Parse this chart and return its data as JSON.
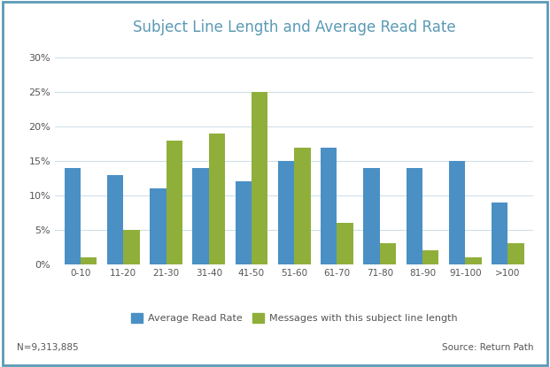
{
  "title": "Subject Line Length and Average Read Rate",
  "categories": [
    "0-10",
    "11-20",
    "21-30",
    "31-40",
    "41-50",
    "51-60",
    "61-70",
    "71-80",
    "81-90",
    "91-100",
    ">100"
  ],
  "avg_read_rate": [
    0.14,
    0.13,
    0.11,
    0.14,
    0.12,
    0.15,
    0.17,
    0.14,
    0.14,
    0.15,
    0.09
  ],
  "msg_pct": [
    0.01,
    0.05,
    0.18,
    0.19,
    0.25,
    0.17,
    0.06,
    0.03,
    0.02,
    0.01,
    0.03
  ],
  "bar_color_blue": "#4A90C4",
  "bar_color_green": "#8FAF3A",
  "yticks": [
    0.0,
    0.05,
    0.1,
    0.15,
    0.2,
    0.25,
    0.3
  ],
  "ytick_labels": [
    "0%",
    "5%",
    "10%",
    "15%",
    "20%",
    "25%",
    "30%"
  ],
  "ylim": [
    0,
    0.32
  ],
  "legend_label_blue": "Average Read Rate",
  "legend_label_green": "Messages with this subject line length",
  "footnote_left": "N=9,313,885",
  "footnote_right": "Source: Return Path",
  "background_color": "#FFFFFF",
  "border_color": "#5B9AB5",
  "title_color": "#5B9AB5",
  "tick_label_color": "#555555",
  "footnote_color": "#555555",
  "grid_color": "#D0DFE8"
}
